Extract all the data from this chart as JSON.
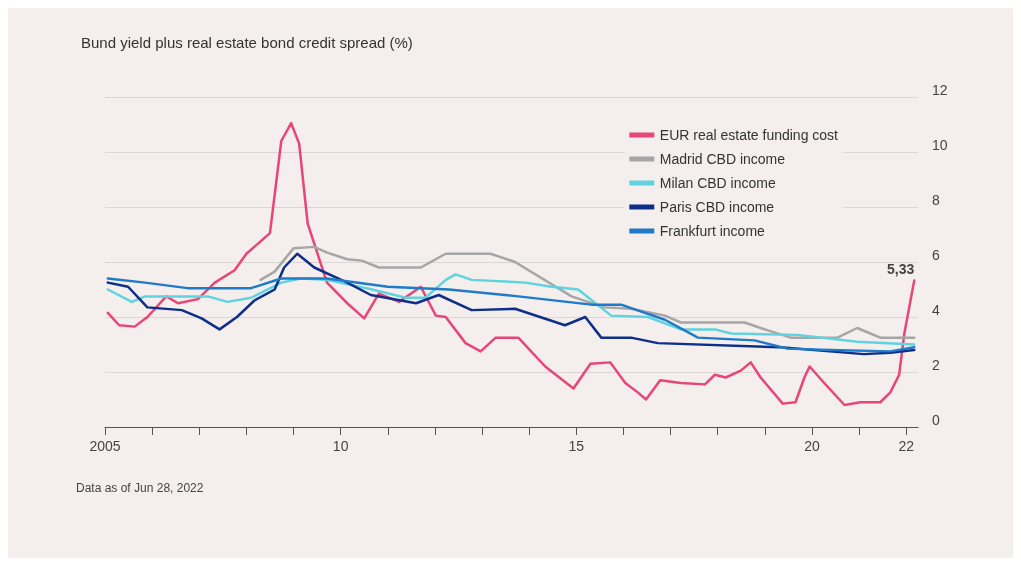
{
  "chart_data": {
    "type": "line",
    "title": "Bund yield plus real estate bond credit spread (%)",
    "annotations": [
      "Data as of Jun 28, 2022",
      {
        "text": "5,33",
        "x": 2022.17,
        "y": 5.33
      }
    ],
    "xlim": [
      2005,
      2022.25
    ],
    "xticks": [
      2005,
      {
        "value": 2006,
        "label": null
      },
      {
        "value": 2007,
        "label": null
      },
      {
        "value": 2008,
        "label": null
      },
      {
        "value": 2009,
        "label": null
      },
      {
        "value": 2010,
        "label": "10"
      },
      {
        "value": 2011,
        "label": null
      },
      {
        "value": 2012,
        "label": null
      },
      {
        "value": 2013,
        "label": null
      },
      {
        "value": 2014,
        "label": null
      },
      {
        "value": 2015,
        "label": "15"
      },
      {
        "value": 2016,
        "label": null
      },
      {
        "value": 2017,
        "label": null
      },
      {
        "value": 2018,
        "label": null
      },
      {
        "value": 2019,
        "label": null
      },
      {
        "value": 2020,
        "label": "20"
      },
      {
        "value": 2021,
        "label": null
      },
      {
        "value": 2022,
        "label": "22"
      }
    ],
    "ylim": [
      0,
      12
    ],
    "yticks": [
      0,
      2,
      4,
      6,
      8,
      10,
      12
    ],
    "grid": "y",
    "legend": "top right",
    "marker": "none",
    "line_style": "solid",
    "series": [
      {
        "name": "EUR real estate funding cost",
        "color": "#e8457a",
        "x": [
          2005.06,
          2005.3,
          2005.63,
          2005.9,
          2006.3,
          2006.55,
          2006.97,
          2007.33,
          2007.75,
          2008.0,
          2008.5,
          2008.74,
          2008.95,
          2009.12,
          2009.3,
          2009.71,
          2010.14,
          2010.5,
          2010.81,
          2011.24,
          2011.7,
          2012.02,
          2012.23,
          2012.65,
          2012.97,
          2013.29,
          2013.77,
          2014.34,
          2014.94,
          2015.3,
          2015.72,
          2016.04,
          2016.31,
          2016.48,
          2016.78,
          2017.22,
          2017.73,
          2017.94,
          2018.17,
          2018.49,
          2018.7,
          2018.91,
          2019.38,
          2019.65,
          2019.84,
          2019.95,
          2020.26,
          2020.69,
          2021.03,
          2021.45,
          2021.66,
          2021.85,
          2021.96,
          2022.17
        ],
        "values": [
          4.15,
          3.7,
          3.65,
          4.0,
          4.75,
          4.5,
          4.65,
          5.25,
          5.7,
          6.3,
          7.05,
          10.4,
          11.05,
          10.3,
          7.4,
          5.25,
          4.5,
          3.95,
          4.85,
          4.55,
          5.1,
          4.05,
          4.0,
          3.05,
          2.75,
          3.25,
          3.25,
          2.2,
          1.4,
          2.3,
          2.35,
          1.6,
          1.25,
          1.0,
          1.7,
          1.6,
          1.55,
          1.9,
          1.8,
          2.05,
          2.35,
          1.8,
          0.85,
          0.9,
          1.8,
          2.2,
          1.6,
          0.8,
          0.9,
          0.9,
          1.25,
          1.9,
          3.4,
          5.33
        ]
      },
      {
        "name": "Madrid CBD income",
        "color": "#a6a6a6",
        "x": [
          2008.3,
          2008.6,
          2009.0,
          2009.44,
          2009.7,
          2010.14,
          2010.45,
          2010.81,
          2011.7,
          2012.23,
          2013.18,
          2013.7,
          2014.9,
          2015.6,
          2016.16,
          2016.88,
          2017.22,
          2018.57,
          2019.0,
          2019.55,
          2020.54,
          2020.96,
          2021.45,
          2022.17
        ],
        "values": [
          5.35,
          5.65,
          6.5,
          6.55,
          6.35,
          6.1,
          6.05,
          5.8,
          5.8,
          6.3,
          6.3,
          6.0,
          4.75,
          4.35,
          4.3,
          4.05,
          3.8,
          3.8,
          3.55,
          3.25,
          3.25,
          3.6,
          3.25,
          3.25
        ]
      },
      {
        "name": "Milan CBD income",
        "color": "#5fd3e0",
        "x": [
          2005.06,
          2005.57,
          2005.85,
          2007.18,
          2007.6,
          2008.1,
          2008.74,
          2009.16,
          2009.7,
          2010.67,
          2011.38,
          2011.8,
          2012.23,
          2012.44,
          2012.78,
          2013.92,
          2014.47,
          2015.04,
          2015.74,
          2016.52,
          2017.22,
          2017.94,
          2018.28,
          2019.69,
          2020.96,
          2022.17
        ],
        "values": [
          5.0,
          4.55,
          4.75,
          4.75,
          4.55,
          4.7,
          5.25,
          5.4,
          5.35,
          5.0,
          4.7,
          4.7,
          5.35,
          5.55,
          5.35,
          5.25,
          5.1,
          5.0,
          4.05,
          4.0,
          3.55,
          3.55,
          3.4,
          3.35,
          3.1,
          3.0
        ]
      },
      {
        "name": "Paris CBD income",
        "color": "#0d2f8a",
        "x": [
          2005.06,
          2005.49,
          2005.9,
          2006.63,
          2007.05,
          2007.43,
          2007.8,
          2008.17,
          2008.6,
          2008.8,
          2009.08,
          2009.44,
          2010.14,
          2010.64,
          2011.6,
          2012.08,
          2012.78,
          2013.7,
          2014.76,
          2015.19,
          2015.53,
          2016.16,
          2016.73,
          2019.33,
          2021.1,
          2021.66,
          2022.17
        ],
        "values": [
          5.25,
          5.1,
          4.35,
          4.25,
          3.95,
          3.55,
          4.0,
          4.6,
          5.0,
          5.8,
          6.3,
          5.8,
          5.25,
          4.8,
          4.5,
          4.8,
          4.25,
          4.3,
          3.7,
          4.0,
          3.25,
          3.25,
          3.05,
          2.9,
          2.65,
          2.7,
          2.8
        ]
      },
      {
        "name": "Frankfurt income",
        "color": "#1f7bc8",
        "x": [
          2005.06,
          2005.85,
          2006.75,
          2008.1,
          2008.74,
          2009.7,
          2011.0,
          2012.3,
          2013.77,
          2015.32,
          2015.95,
          2016.88,
          2017.58,
          2018.78,
          2019.48,
          2020.39,
          2021.66,
          2022.17
        ],
        "values": [
          5.4,
          5.25,
          5.05,
          5.05,
          5.4,
          5.4,
          5.1,
          5.0,
          4.75,
          4.45,
          4.45,
          3.9,
          3.25,
          3.15,
          2.85,
          2.8,
          2.75,
          2.9
        ]
      }
    ]
  }
}
